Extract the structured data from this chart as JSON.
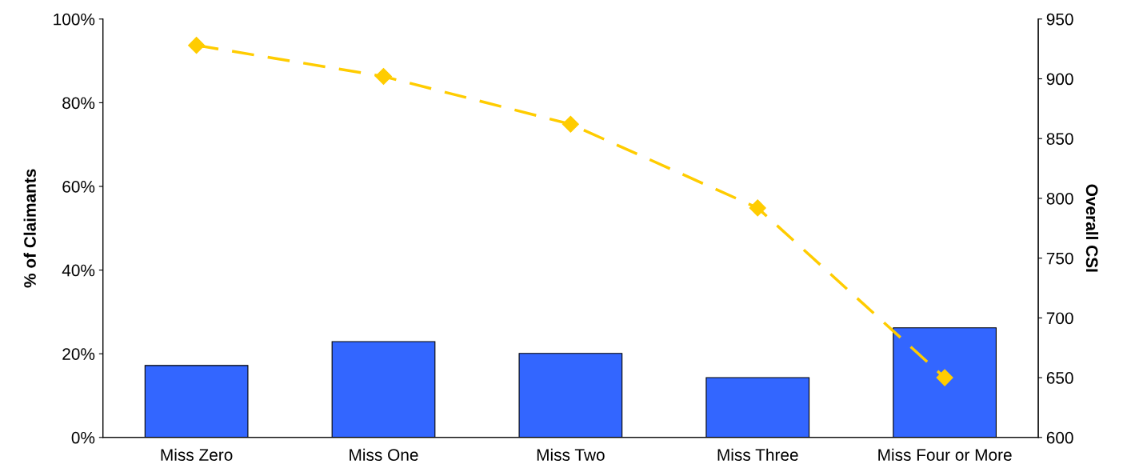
{
  "chart_data": {
    "type": "bar",
    "categories": [
      "Miss Zero",
      "Miss One",
      "Miss Two",
      "Miss Three",
      "Miss Four or More"
    ],
    "ylabel": "% of Claimants",
    "y2label": "Overall CSI",
    "ylim": [
      0,
      100
    ],
    "yticks": [
      {
        "value": 0,
        "label": "0%"
      },
      {
        "value": 20,
        "label": "20%"
      },
      {
        "value": 40,
        "label": "40%"
      },
      {
        "value": 60,
        "label": "60%"
      },
      {
        "value": 80,
        "label": "80%"
      },
      {
        "value": 100,
        "label": "100%"
      }
    ],
    "y2lim": [
      600,
      950
    ],
    "y2ticks": [
      600,
      650,
      700,
      750,
      800,
      850,
      900,
      950
    ],
    "grid": false,
    "legend": false,
    "series": [
      {
        "color": "#3366ff",
        "values": [
          17.2,
          22.9,
          20.1,
          14.3,
          26.2
        ]
      },
      {
        "type": "line",
        "axis": "y2",
        "color": "#ffcc00",
        "marker": "diamond",
        "line_style": "dashed",
        "values": [
          928,
          902,
          862,
          792,
          650
        ]
      }
    ]
  }
}
